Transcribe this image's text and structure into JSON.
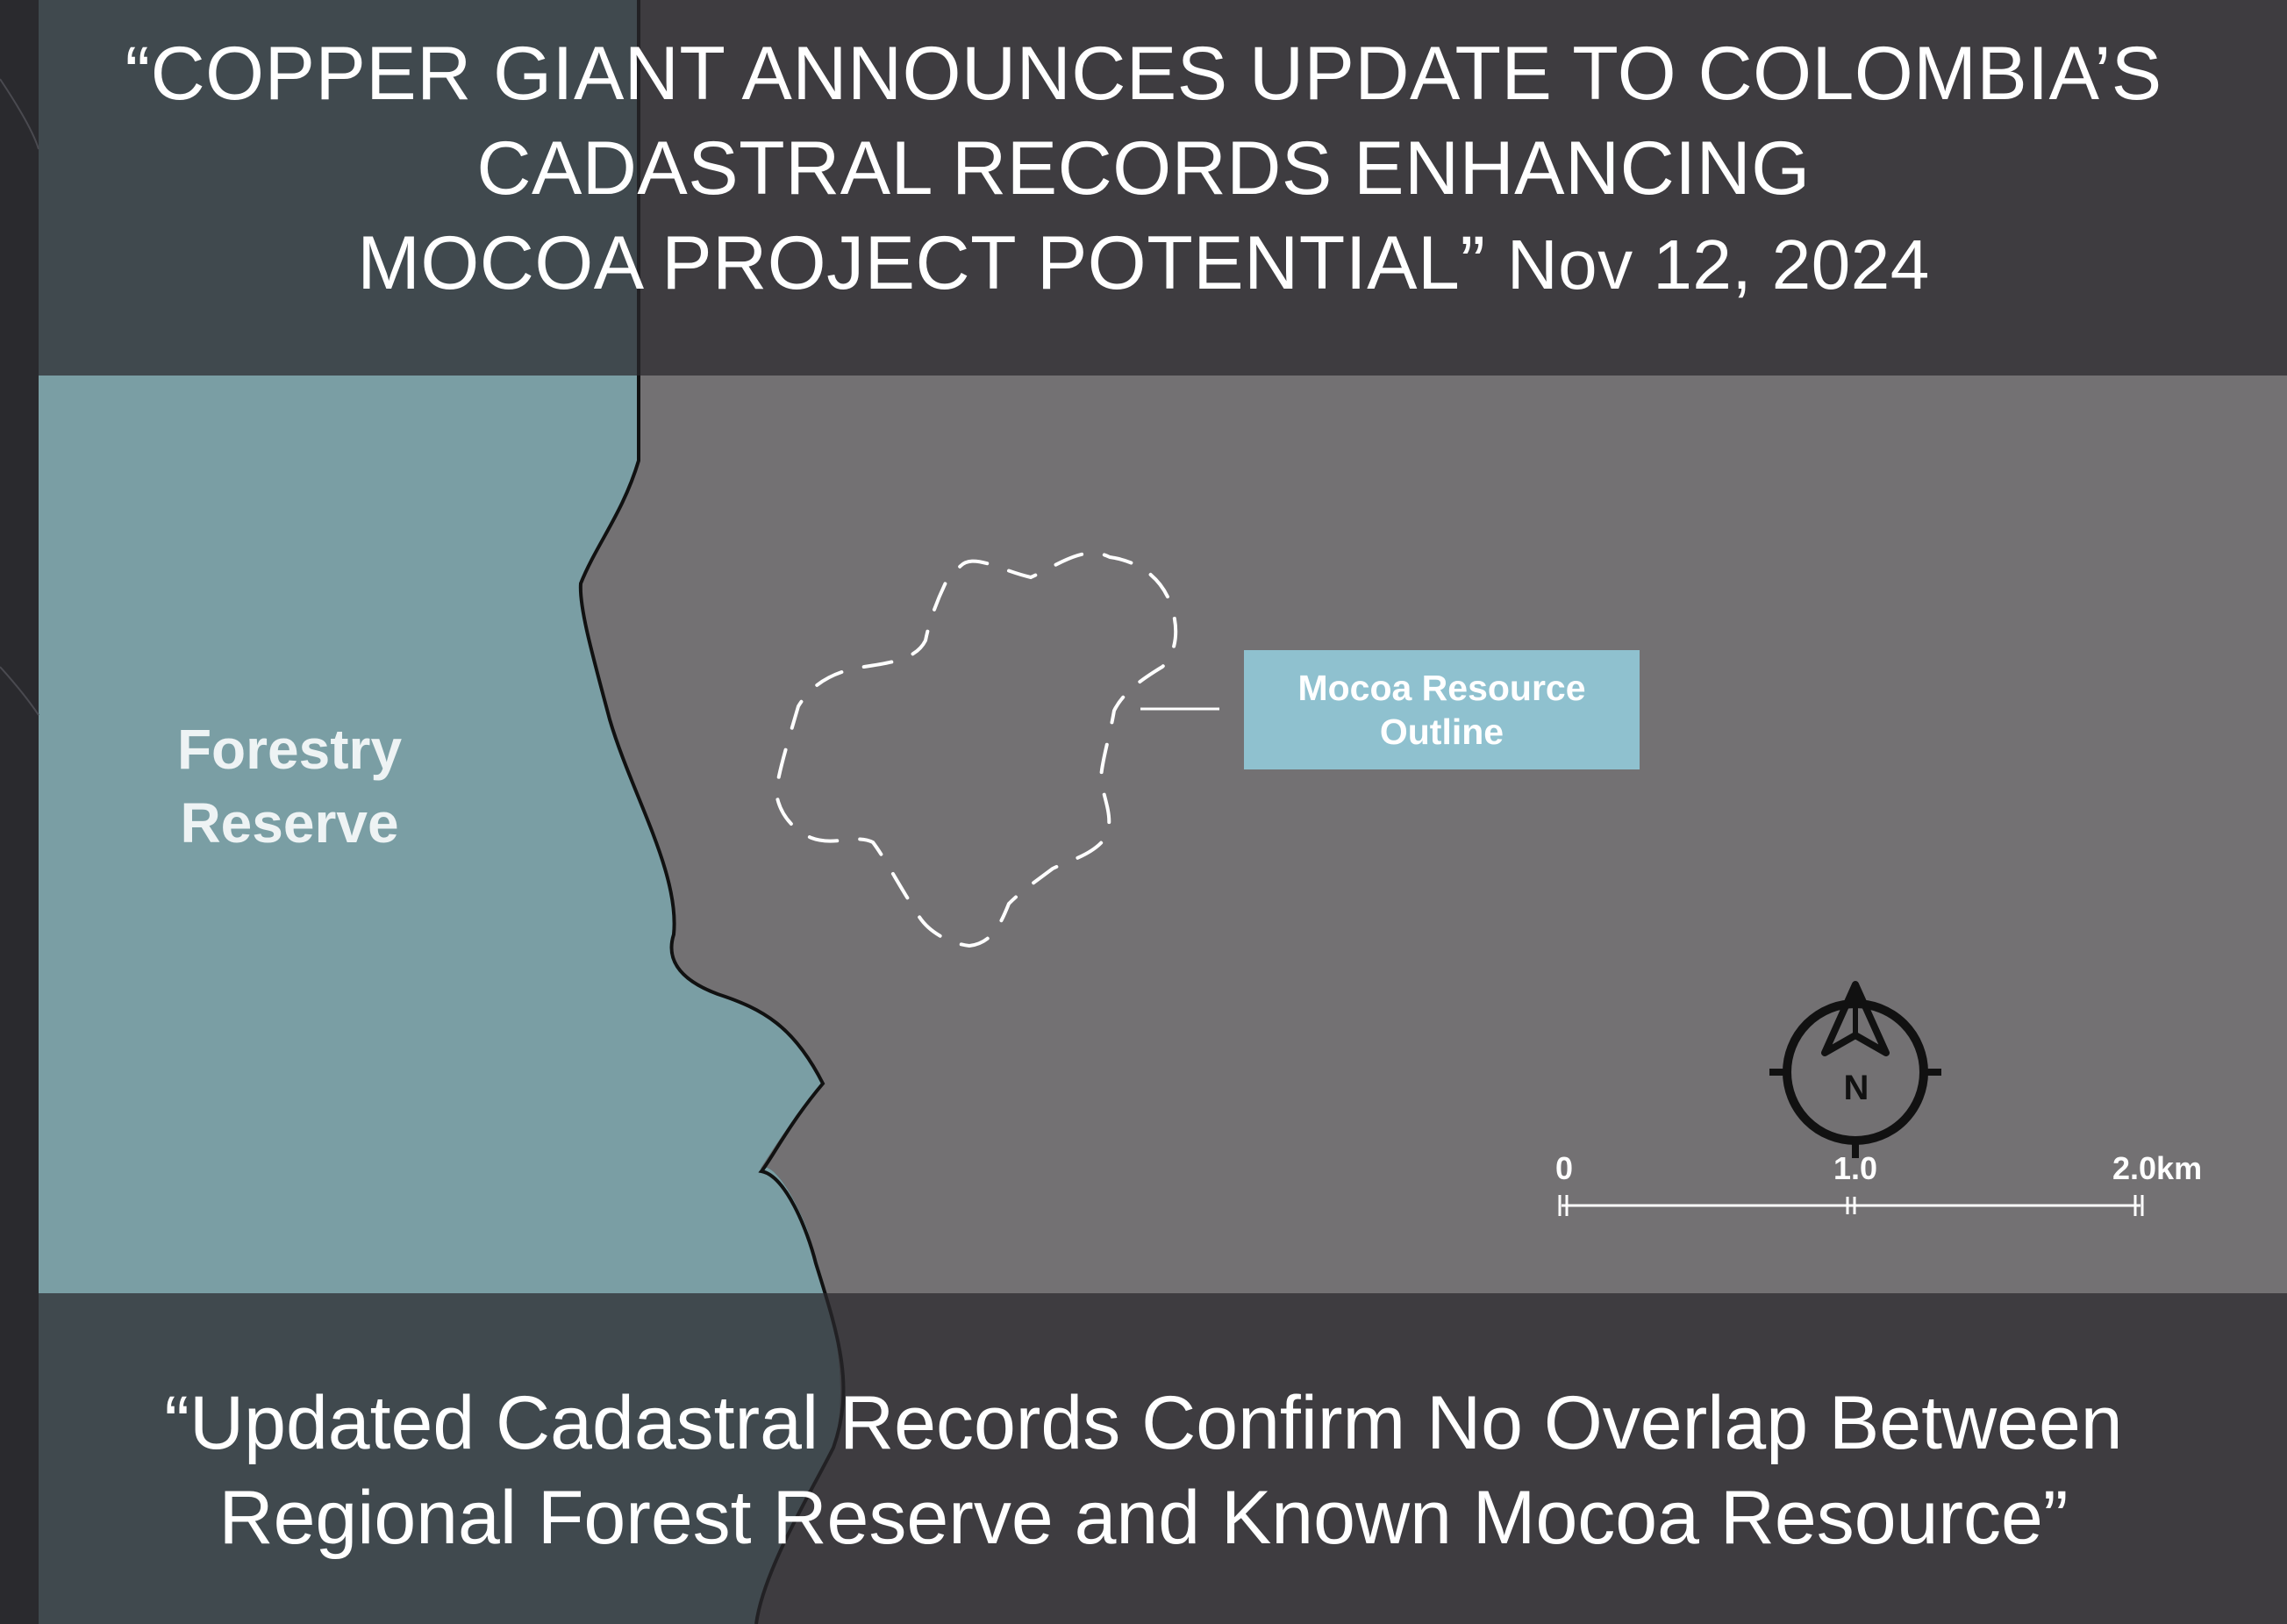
{
  "headline": {
    "line1": "“COPPER GIANT ANNOUNCES UPDATE TO COLOMBIA’S",
    "line2": "CADASTRAL RECORDS ENHANCING",
    "line3": "MOCOA PROJECT POTENTIAL”",
    "date": "Nov 12, 2024"
  },
  "subheadline": {
    "line1": "“Updated Cadastral Records Confirm No Overlap Between",
    "line2": "Regional Forest Reserve and Known Mocoa Resource”"
  },
  "map": {
    "forestry_label": {
      "line1": "Forestry",
      "line2": "Reserve"
    },
    "resource_label": {
      "line1": "Mocoa Resource",
      "line2": "Outline"
    },
    "north_arrow": {
      "icon": "north-arrow-icon",
      "letter": "N"
    },
    "scale_bar": {
      "labels": [
        "0",
        "1.0",
        "2.0km"
      ]
    },
    "colors": {
      "forestry_reserve": "#7a9ea4",
      "surrounding_area": "#737173",
      "resource_box": "#8fc1cf",
      "banner": "#343235"
    }
  }
}
